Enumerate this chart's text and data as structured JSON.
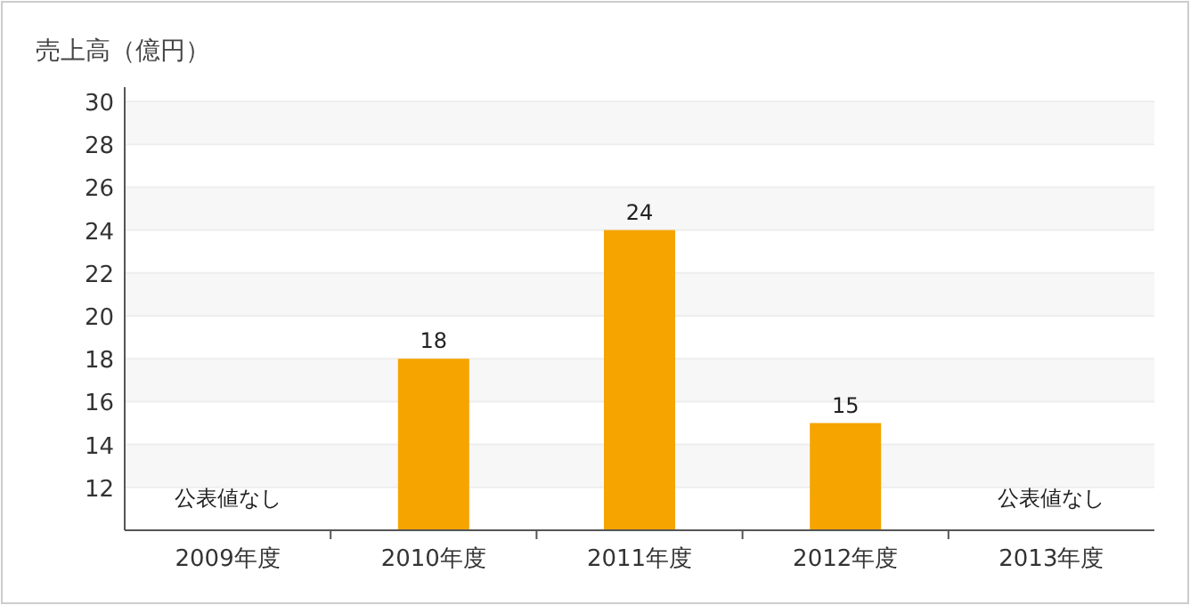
{
  "chart_data": {
    "type": "bar",
    "ylabel": "売上高（億円）",
    "categories": [
      "2009年度",
      "2010年度",
      "2011年度",
      "2012年度",
      "2013年度"
    ],
    "values": [
      null,
      18,
      24,
      15,
      null
    ],
    "color": "#f5a400",
    "ylim": [
      10,
      30
    ],
    "yticks": [
      12,
      14,
      16,
      18,
      20,
      22,
      24,
      26,
      28,
      30
    ],
    "grid": "y",
    "data_labels": true,
    "annotations": [
      "公表値なし",
      "公表値なし"
    ]
  }
}
